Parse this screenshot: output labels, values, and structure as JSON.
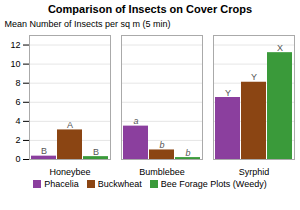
{
  "chart_data": {
    "type": "bar",
    "title": "Comparison of Insects on Cover Crops",
    "ylabel": "Mean Number of Insects per sq m (5 min)",
    "categories": [
      "Honeybee",
      "Bumblebee",
      "Syrphid"
    ],
    "series": [
      {
        "name": "Phacelia",
        "color": "#8B3F9E",
        "values": [
          0.35,
          3.5,
          6.5
        ],
        "letters": [
          "B",
          "a",
          "Y"
        ]
      },
      {
        "name": "Buckwheat",
        "color": "#8B4513",
        "values": [
          3.1,
          1.0,
          8.1
        ],
        "letters": [
          "A",
          "b",
          "Y"
        ]
      },
      {
        "name": "Bee Forage Plots (Weedy)",
        "color": "#3A9A3A",
        "values": [
          0.3,
          0.2,
          11.2
        ],
        "letters": [
          "B",
          "b",
          "X"
        ]
      }
    ],
    "ylim": [
      0,
      13
    ],
    "yticks": [
      0,
      2,
      4,
      6,
      8,
      10,
      12
    ],
    "grid": true,
    "legend": "bottom"
  }
}
